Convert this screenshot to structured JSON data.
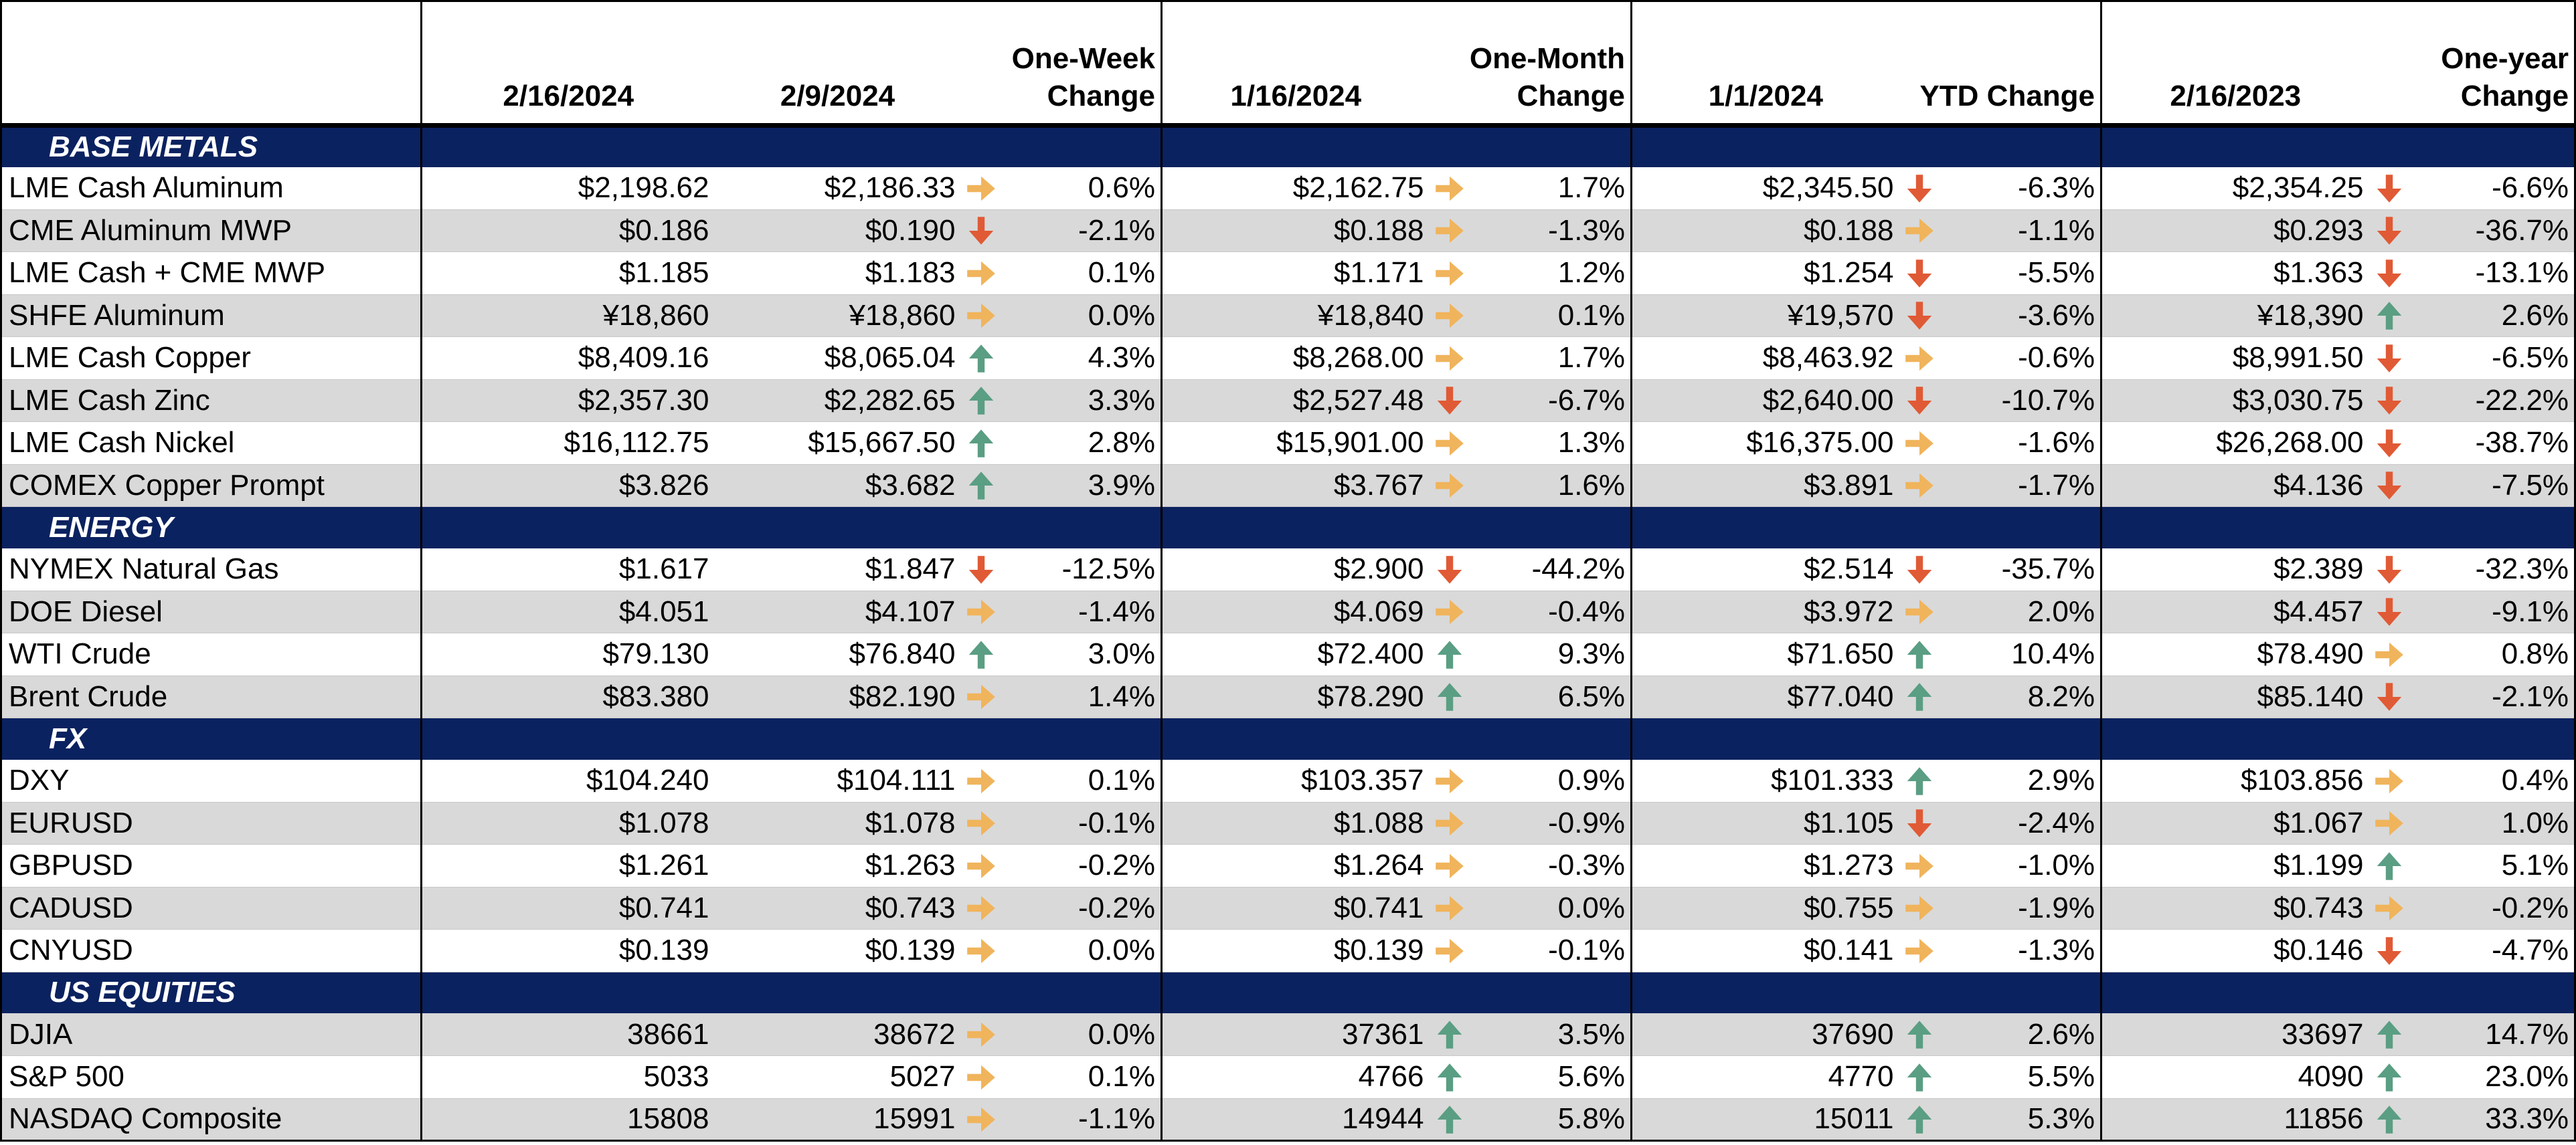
{
  "header": {
    "dates": [
      "2/16/2024",
      "2/9/2024",
      "1/16/2024",
      "1/1/2024",
      "2/16/2023"
    ],
    "changes": [
      "One-Week Change",
      "One-Month Change",
      "YTD Change",
      "One-year Change"
    ]
  },
  "colors": {
    "up": "#5a9e83",
    "flat": "#f0b45c",
    "down": "#e05a35",
    "section_bg": "#0b2260"
  },
  "sections": [
    {
      "title": "BASE METALS",
      "rows": [
        {
          "label": "LME Cash Aluminum",
          "v0": "$2,198.62",
          "v1": "$2,186.33",
          "a1": "flat",
          "c1": "0.6%",
          "v2": "$2,162.75",
          "a2": "flat",
          "c2": "1.7%",
          "v3": "$2,345.50",
          "a3": "down",
          "c3": "-6.3%",
          "v4": "$2,354.25",
          "a4": "down",
          "c4": "-6.6%"
        },
        {
          "label": "CME Aluminum MWP",
          "v0": "$0.186",
          "v1": "$0.190",
          "a1": "down",
          "c1": "-2.1%",
          "v2": "$0.188",
          "a2": "flat",
          "c2": "-1.3%",
          "v3": "$0.188",
          "a3": "flat",
          "c3": "-1.1%",
          "v4": "$0.293",
          "a4": "down",
          "c4": "-36.7%"
        },
        {
          "label": "LME Cash + CME MWP",
          "v0": "$1.185",
          "v1": "$1.183",
          "a1": "flat",
          "c1": "0.1%",
          "v2": "$1.171",
          "a2": "flat",
          "c2": "1.2%",
          "v3": "$1.254",
          "a3": "down",
          "c3": "-5.5%",
          "v4": "$1.363",
          "a4": "down",
          "c4": "-13.1%"
        },
        {
          "label": "SHFE Aluminum",
          "v0": "¥18,860",
          "v1": "¥18,860",
          "a1": "flat",
          "c1": "0.0%",
          "v2": "¥18,840",
          "a2": "flat",
          "c2": "0.1%",
          "v3": "¥19,570",
          "a3": "down",
          "c3": "-3.6%",
          "v4": "¥18,390",
          "a4": "up",
          "c4": "2.6%"
        },
        {
          "label": "LME Cash Copper",
          "v0": "$8,409.16",
          "v1": "$8,065.04",
          "a1": "up",
          "c1": "4.3%",
          "v2": "$8,268.00",
          "a2": "flat",
          "c2": "1.7%",
          "v3": "$8,463.92",
          "a3": "flat",
          "c3": "-0.6%",
          "v4": "$8,991.50",
          "a4": "down",
          "c4": "-6.5%"
        },
        {
          "label": "LME Cash Zinc",
          "v0": "$2,357.30",
          "v1": "$2,282.65",
          "a1": "up",
          "c1": "3.3%",
          "v2": "$2,527.48",
          "a2": "down",
          "c2": "-6.7%",
          "v3": "$2,640.00",
          "a3": "down",
          "c3": "-10.7%",
          "v4": "$3,030.75",
          "a4": "down",
          "c4": "-22.2%"
        },
        {
          "label": "LME Cash Nickel",
          "v0": "$16,112.75",
          "v1": "$15,667.50",
          "a1": "up",
          "c1": "2.8%",
          "v2": "$15,901.00",
          "a2": "flat",
          "c2": "1.3%",
          "v3": "$16,375.00",
          "a3": "flat",
          "c3": "-1.6%",
          "v4": "$26,268.00",
          "a4": "down",
          "c4": "-38.7%"
        },
        {
          "label": "COMEX Copper Prompt",
          "v0": "$3.826",
          "v1": "$3.682",
          "a1": "up",
          "c1": "3.9%",
          "v2": "$3.767",
          "a2": "flat",
          "c2": "1.6%",
          "v3": "$3.891",
          "a3": "flat",
          "c3": "-1.7%",
          "v4": "$4.136",
          "a4": "down",
          "c4": "-7.5%"
        }
      ]
    },
    {
      "title": "ENERGY",
      "rows": [
        {
          "label": "NYMEX Natural Gas",
          "v0": "$1.617",
          "v1": "$1.847",
          "a1": "down",
          "c1": "-12.5%",
          "v2": "$2.900",
          "a2": "down",
          "c2": "-44.2%",
          "v3": "$2.514",
          "a3": "down",
          "c3": "-35.7%",
          "v4": "$2.389",
          "a4": "down",
          "c4": "-32.3%"
        },
        {
          "label": "DOE Diesel",
          "v0": "$4.051",
          "v1": "$4.107",
          "a1": "flat",
          "c1": "-1.4%",
          "v2": "$4.069",
          "a2": "flat",
          "c2": "-0.4%",
          "v3": "$3.972",
          "a3": "flat",
          "c3": "2.0%",
          "v4": "$4.457",
          "a4": "down",
          "c4": "-9.1%"
        },
        {
          "label": "WTI Crude",
          "v0": "$79.130",
          "v1": "$76.840",
          "a1": "up",
          "c1": "3.0%",
          "v2": "$72.400",
          "a2": "up",
          "c2": "9.3%",
          "v3": "$71.650",
          "a3": "up",
          "c3": "10.4%",
          "v4": "$78.490",
          "a4": "flat",
          "c4": "0.8%"
        },
        {
          "label": "Brent Crude",
          "v0": "$83.380",
          "v1": "$82.190",
          "a1": "flat",
          "c1": "1.4%",
          "v2": "$78.290",
          "a2": "up",
          "c2": "6.5%",
          "v3": "$77.040",
          "a3": "up",
          "c3": "8.2%",
          "v4": "$85.140",
          "a4": "down",
          "c4": "-2.1%"
        }
      ]
    },
    {
      "title": "FX",
      "rows": [
        {
          "label": "DXY",
          "v0": "$104.240",
          "v1": "$104.111",
          "a1": "flat",
          "c1": "0.1%",
          "v2": "$103.357",
          "a2": "flat",
          "c2": "0.9%",
          "v3": "$101.333",
          "a3": "up",
          "c3": "2.9%",
          "v4": "$103.856",
          "a4": "flat",
          "c4": "0.4%"
        },
        {
          "label": "EURUSD",
          "v0": "$1.078",
          "v1": "$1.078",
          "a1": "flat",
          "c1": "-0.1%",
          "v2": "$1.088",
          "a2": "flat",
          "c2": "-0.9%",
          "v3": "$1.105",
          "a3": "down",
          "c3": "-2.4%",
          "v4": "$1.067",
          "a4": "flat",
          "c4": "1.0%"
        },
        {
          "label": "GBPUSD",
          "v0": "$1.261",
          "v1": "$1.263",
          "a1": "flat",
          "c1": "-0.2%",
          "v2": "$1.264",
          "a2": "flat",
          "c2": "-0.3%",
          "v3": "$1.273",
          "a3": "flat",
          "c3": "-1.0%",
          "v4": "$1.199",
          "a4": "up",
          "c4": "5.1%"
        },
        {
          "label": "CADUSD",
          "v0": "$0.741",
          "v1": "$0.743",
          "a1": "flat",
          "c1": "-0.2%",
          "v2": "$0.741",
          "a2": "flat",
          "c2": "0.0%",
          "v3": "$0.755",
          "a3": "flat",
          "c3": "-1.9%",
          "v4": "$0.743",
          "a4": "flat",
          "c4": "-0.2%"
        },
        {
          "label": "CNYUSD",
          "v0": "$0.139",
          "v1": "$0.139",
          "a1": "flat",
          "c1": "0.0%",
          "v2": "$0.139",
          "a2": "flat",
          "c2": "-0.1%",
          "v3": "$0.141",
          "a3": "flat",
          "c3": "-1.3%",
          "v4": "$0.146",
          "a4": "down",
          "c4": "-4.7%"
        }
      ]
    },
    {
      "title": "US EQUITIES",
      "rows": [
        {
          "label": "DJIA",
          "v0": "38661",
          "v1": "38672",
          "a1": "flat",
          "c1": "0.0%",
          "v2": "37361",
          "a2": "up",
          "c2": "3.5%",
          "v3": "37690",
          "a3": "up",
          "c3": "2.6%",
          "v4": "33697",
          "a4": "up",
          "c4": "14.7%"
        },
        {
          "label": "S&P 500",
          "v0": "5033",
          "v1": "5027",
          "a1": "flat",
          "c1": "0.1%",
          "v2": "4766",
          "a2": "up",
          "c2": "5.6%",
          "v3": "4770",
          "a3": "up",
          "c3": "5.5%",
          "v4": "4090",
          "a4": "up",
          "c4": "23.0%"
        },
        {
          "label": "NASDAQ Composite",
          "v0": "15808",
          "v1": "15991",
          "a1": "flat",
          "c1": "-1.1%",
          "v2": "14944",
          "a2": "up",
          "c2": "5.8%",
          "v3": "15011",
          "a3": "up",
          "c3": "5.3%",
          "v4": "11856",
          "a4": "up",
          "c4": "33.3%"
        }
      ]
    }
  ]
}
